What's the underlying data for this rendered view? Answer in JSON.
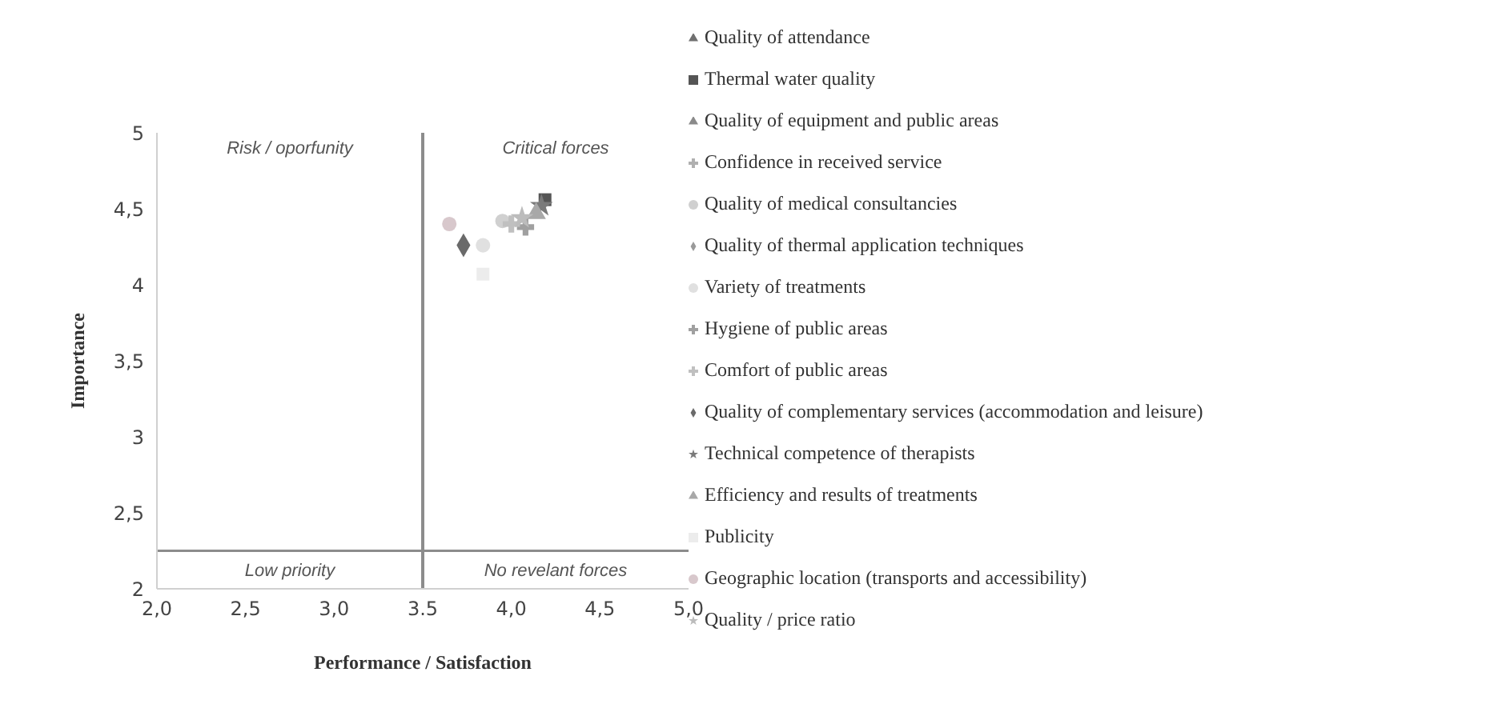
{
  "chart_data": {
    "type": "scatter",
    "xlabel": "Performance / Satisfaction",
    "ylabel": "Importance",
    "xlim": [
      2.0,
      5.0
    ],
    "ylim": [
      2,
      5
    ],
    "xticks": [
      {
        "value": 2.0,
        "label": "2,0"
      },
      {
        "value": 2.5,
        "label": "2,5"
      },
      {
        "value": 3.0,
        "label": "3,0"
      },
      {
        "value": 3.5,
        "label": "3.5"
      },
      {
        "value": 4.0,
        "label": "4,0"
      },
      {
        "value": 4.5,
        "label": "4,5"
      },
      {
        "value": 5.0,
        "label": "5,0"
      }
    ],
    "yticks": [
      2,
      {
        "value": 2.5,
        "label": "2,5"
      },
      3,
      {
        "value": 3.5,
        "label": "3,5"
      },
      4,
      {
        "value": 4.5,
        "label": "4,5"
      },
      5
    ],
    "grid": false,
    "legend": "right",
    "ref_lines": [
      {
        "axis": "x",
        "value": 3.5,
        "color": "#8c8c8c"
      },
      {
        "axis": "y",
        "value": 2.25,
        "color": "#8c8c8c"
      }
    ],
    "annotations": [
      "Risk / oporfunity",
      "Critical forces",
      "Low priority",
      "No revelant forces"
    ],
    "series": [
      {
        "name": "Quality of attendance",
        "color": "#707070",
        "marker": "triangle",
        "x": [
          null
        ],
        "values": [
          null
        ]
      },
      {
        "name": "Thermal water quality",
        "color": "#555555",
        "marker": "square",
        "x": [
          4.19
        ],
        "values": [
          4.56
        ]
      },
      {
        "name": "Quality of equipment and public areas",
        "color": "#8a8a8a",
        "marker": "triangle",
        "x": [
          null
        ],
        "values": [
          null
        ]
      },
      {
        "name": "Confidence in received service",
        "color": "#b0b0b0",
        "marker": "cross",
        "x": [
          null
        ],
        "values": [
          null
        ]
      },
      {
        "name": "Quality of medical consultancies",
        "color": "#d0d0d0",
        "marker": "circle",
        "x": [
          3.95
        ],
        "values": [
          4.42
        ]
      },
      {
        "name": "Quality of thermal application techniques",
        "color": "#9a9a9a",
        "marker": "diamond",
        "x": [
          null
        ],
        "values": [
          null
        ]
      },
      {
        "name": "Variety of treatments",
        "color": "#e0e0e0",
        "marker": "circle",
        "x": [
          3.84
        ],
        "values": [
          4.26
        ]
      },
      {
        "name": "Hygiene of public areas",
        "color": "#a0a0a0",
        "marker": "cross",
        "x": [
          4.08
        ],
        "values": [
          4.38
        ]
      },
      {
        "name": "Comfort of public areas",
        "color": "#c0c0c0",
        "marker": "cross",
        "x": [
          4.0
        ],
        "values": [
          4.4
        ]
      },
      {
        "name": "Quality of complementary services (accommodation and leisure)",
        "color": "#6a6a6a",
        "marker": "diamond",
        "x": [
          3.73
        ],
        "values": [
          4.26
        ]
      },
      {
        "name": "Technical competence of therapists",
        "color": "#7a7a7a",
        "marker": "star",
        "x": [
          4.17
        ],
        "values": [
          4.52
        ]
      },
      {
        "name": "Efficiency and results of treatments",
        "color": "#a8a8a8",
        "marker": "triangle",
        "x": [
          4.14
        ],
        "values": [
          4.47
        ]
      },
      {
        "name": "Publicity",
        "color": "#ececec",
        "marker": "square",
        "x": [
          3.84
        ],
        "values": [
          4.07
        ]
      },
      {
        "name": "Geographic location (transports and accessibility)",
        "color": "#d8c8cc",
        "marker": "circle",
        "x": [
          3.65
        ],
        "values": [
          4.4
        ]
      },
      {
        "name": "Quality / price ratio",
        "color": "#bcbcbc",
        "marker": "star",
        "x": [
          4.06
        ],
        "values": [
          4.44
        ]
      }
    ]
  }
}
